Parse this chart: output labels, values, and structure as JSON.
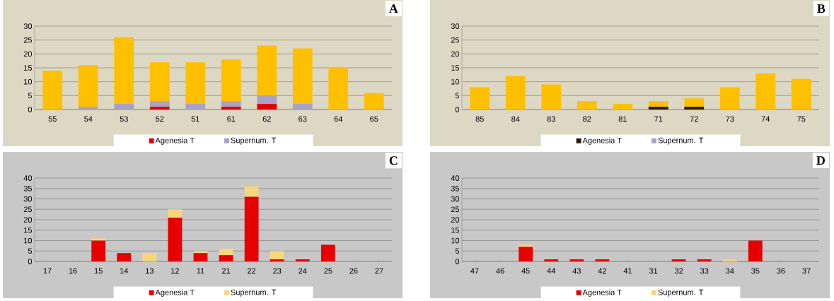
{
  "chart_data": [
    {
      "type": "bar",
      "title": "A",
      "stacked": true,
      "grid": "y",
      "legend": "bottom",
      "categories": [
        "55",
        "54",
        "53",
        "52",
        "51",
        "61",
        "62",
        "63",
        "64",
        "65"
      ],
      "ylim": [
        0,
        30
      ],
      "yticks": [
        0,
        5,
        10,
        15,
        20,
        25,
        30
      ],
      "series": [
        {
          "name": "Agenesia T",
          "color": "#e00000",
          "values": [
            0,
            0,
            0,
            1,
            0,
            1,
            2,
            0,
            0,
            0
          ]
        },
        {
          "name": "Supernum. T",
          "color": "#aaa2c4",
          "values": [
            0,
            1,
            2,
            2,
            2,
            2,
            3,
            2,
            0,
            0
          ]
        },
        {
          "color": "#ffc000",
          "values": [
            14,
            15,
            24,
            14,
            15,
            15,
            18,
            20,
            15,
            6
          ]
        }
      ]
    },
    {
      "type": "bar",
      "title": "B",
      "stacked": true,
      "grid": "y",
      "legend": "bottom",
      "categories": [
        "85",
        "84",
        "83",
        "82",
        "81",
        "71",
        "72",
        "73",
        "74",
        "75"
      ],
      "ylim": [
        0,
        30
      ],
      "yticks": [
        0,
        5,
        10,
        15,
        20,
        25,
        30
      ],
      "series": [
        {
          "name": "Agenesia T",
          "color": "#2b1a10",
          "values": [
            0,
            0,
            0,
            0,
            0,
            1,
            1,
            0,
            0,
            0
          ]
        },
        {
          "name": "Supernum. T",
          "color": "#aaa2c4",
          "values": [
            0,
            0,
            0,
            0,
            0,
            0,
            0,
            0,
            0,
            0
          ]
        },
        {
          "color": "#ffc000",
          "values": [
            8,
            12,
            9,
            3,
            2,
            2,
            3,
            8,
            13,
            11
          ]
        }
      ]
    },
    {
      "type": "bar",
      "title": "C",
      "stacked": true,
      "grid": "y",
      "legend": "bottom",
      "categories": [
        "17",
        "16",
        "15",
        "14",
        "13",
        "12",
        "11",
        "21",
        "22",
        "23",
        "24",
        "25",
        "26",
        "27"
      ],
      "ylim": [
        0,
        40
      ],
      "yticks": [
        0,
        5,
        10,
        15,
        20,
        25,
        30,
        35,
        40
      ],
      "series": [
        {
          "name": "Agenesia T",
          "color": "#e80000",
          "values": [
            0,
            0,
            10,
            4,
            0,
            21,
            4,
            3,
            31,
            1,
            1,
            8,
            0,
            0
          ]
        },
        {
          "name": "Supernum. T",
          "color": "#f7d77a",
          "values": [
            0,
            0,
            1,
            0,
            4,
            4,
            1,
            3,
            5,
            4,
            0,
            0,
            0,
            0
          ]
        }
      ]
    },
    {
      "type": "bar",
      "title": "D",
      "stacked": true,
      "grid": "y",
      "legend": "bottom",
      "categories": [
        "47",
        "46",
        "45",
        "44",
        "43",
        "42",
        "41",
        "31",
        "32",
        "33",
        "34",
        "35",
        "36",
        "37"
      ],
      "ylim": [
        0,
        40
      ],
      "yticks": [
        0,
        5,
        10,
        15,
        20,
        25,
        30,
        35,
        40
      ],
      "series": [
        {
          "name": "Agenesia T",
          "color": "#e80000",
          "values": [
            0,
            0,
            7,
            1,
            1,
            1,
            0,
            0,
            1,
            1,
            0,
            10,
            0,
            0
          ]
        },
        {
          "name": "Supernum. T",
          "color": "#f7d77a",
          "values": [
            0,
            0,
            1,
            0,
            0,
            0,
            0,
            0,
            0,
            0,
            1,
            0,
            0,
            0
          ]
        }
      ]
    }
  ]
}
